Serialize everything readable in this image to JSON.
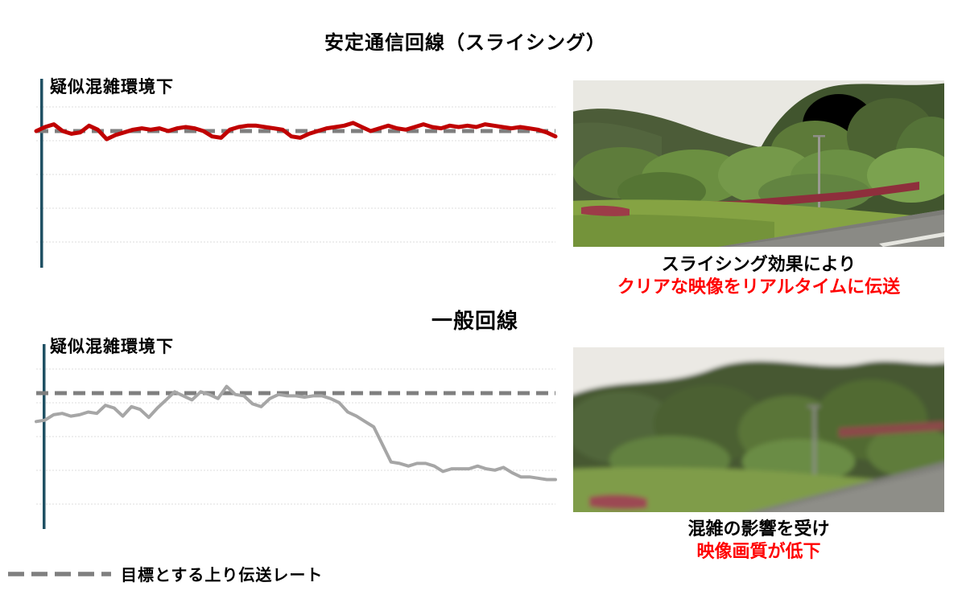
{
  "slide": {
    "title_top": "安定通信回線（スライシング）",
    "title_bottom": "一般回線"
  },
  "chart_data": [
    {
      "type": "line",
      "title": "安定通信回線（スライシング）",
      "annotation": "疑似混雑環境下",
      "xlabel": "",
      "ylabel": "",
      "x_tick_labels": "none shown",
      "y_tick_labels": "none shown",
      "ylim": [
        0,
        1.4
      ],
      "grid": "horizontal",
      "legend_position": "bottom-left of slide (shared)",
      "target_line": {
        "label": "目標とする上り伝送レート",
        "value": 1.0,
        "style": "dashed",
        "color": "#7f7f7f"
      },
      "series": [
        {
          "name": "安定通信回線（スライシング）",
          "color": "#c00000",
          "values": [
            1.0,
            1.03,
            1.05,
            1.0,
            0.98,
            0.99,
            1.04,
            1.01,
            0.94,
            0.97,
            0.99,
            1.01,
            1.02,
            1.01,
            1.02,
            1.0,
            1.02,
            1.03,
            1.02,
            1.0,
            0.96,
            0.95,
            1.01,
            1.03,
            1.04,
            1.04,
            1.03,
            1.02,
            1.01,
            0.96,
            0.95,
            0.98,
            1.0,
            1.02,
            1.03,
            1.04,
            1.06,
            1.03,
            1.0,
            1.02,
            1.04,
            1.02,
            1.01,
            1.03,
            1.05,
            1.03,
            1.02,
            1.04,
            1.03,
            1.04,
            1.03,
            1.05,
            1.04,
            1.03,
            1.02,
            1.03,
            1.02,
            1.01,
            0.99,
            0.96
          ]
        }
      ],
      "y_units": "relative to dashed target rate = 1.0 (axis unlabeled in image)"
    },
    {
      "type": "line",
      "title": "一般回線",
      "annotation": "疑似混雑環境下",
      "xlabel": "",
      "ylabel": "",
      "x_tick_labels": "none shown",
      "y_tick_labels": "none shown",
      "ylim": [
        0,
        1.36
      ],
      "grid": "horizontal",
      "legend_position": "bottom-left of slide (shared)",
      "target_line": {
        "label": "目標とする上り伝送レート",
        "value": 1.0,
        "style": "dashed",
        "color": "#7f7f7f"
      },
      "series": [
        {
          "name": "一般回線",
          "color": "#a6a6a6",
          "values": [
            0.79,
            0.8,
            0.84,
            0.85,
            0.83,
            0.84,
            0.86,
            0.85,
            0.91,
            0.89,
            0.83,
            0.9,
            0.88,
            0.82,
            0.89,
            0.95,
            1.01,
            0.98,
            0.95,
            1.01,
            0.99,
            0.96,
            1.05,
            0.99,
            0.98,
            0.92,
            0.9,
            0.96,
            0.99,
            0.98,
            0.98,
            0.97,
            0.98,
            0.98,
            0.96,
            0.93,
            0.86,
            0.83,
            0.79,
            0.75,
            0.62,
            0.49,
            0.48,
            0.46,
            0.48,
            0.48,
            0.46,
            0.42,
            0.44,
            0.44,
            0.44,
            0.46,
            0.44,
            0.43,
            0.45,
            0.41,
            0.38,
            0.38,
            0.37,
            0.36,
            0.36
          ]
        }
      ],
      "y_units": "relative to dashed target rate = 1.0 (axis unlabeled in image)"
    }
  ],
  "captions": {
    "top_line1": "スライシング効果により",
    "top_line2": "クリアな映像をリアルタイムに伝送",
    "bottom_line1": "混雑の影響を受け",
    "bottom_line2": "映像画質が低下"
  },
  "legend": {
    "label": "目標とする上り伝送レート"
  },
  "icons": {
    "legend_dash": "dashed-line-swatch"
  },
  "colors": {
    "series_red": "#c00000",
    "series_gray": "#a6a6a6",
    "target_dash": "#7f7f7f",
    "axis_line": "#1f5063",
    "gridline": "#dcdcdc",
    "caption_red": "#ff0000",
    "text_black": "#000000"
  }
}
